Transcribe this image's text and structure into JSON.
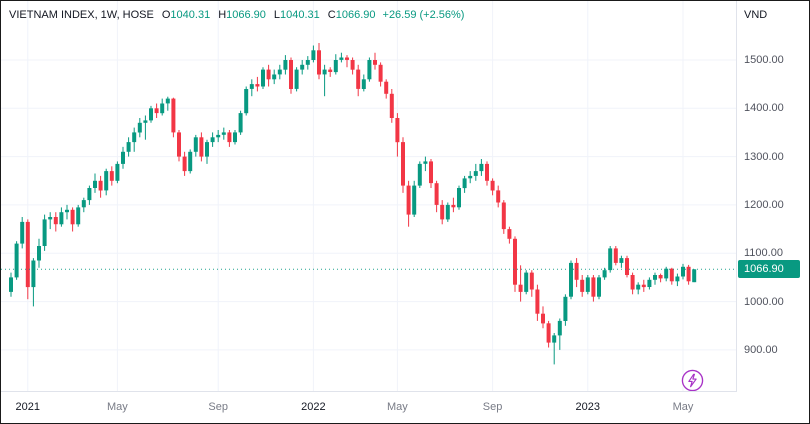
{
  "legend": {
    "title": "VIETNAM INDEX, 1W, HOSE",
    "items": [
      {
        "label": "O",
        "value": "1040.31"
      },
      {
        "label": "H",
        "value": "1066.90"
      },
      {
        "label": "L",
        "value": "1040.31"
      },
      {
        "label": "C",
        "value": "1066.90"
      }
    ],
    "change": "+26.59 (+2.56%)"
  },
  "axis": {
    "currency": "VND",
    "price_tag": "1066.90"
  },
  "colors": {
    "up": "#089981",
    "down": "#f23645",
    "grid": "#f0f3fa",
    "current_line": "#089981",
    "tag_bg": "#089981",
    "purple": "#a832c7"
  },
  "chart_data": {
    "type": "candlestick",
    "title": "VIETNAM INDEX, 1W, HOSE",
    "ylabel": "VND",
    "ylim": [
      815,
      1622
    ],
    "y_ticks": [
      900,
      1000,
      1100,
      1200,
      1300,
      1400,
      1500
    ],
    "current_price": 1066.9,
    "last_candle": {
      "o": 1040.31,
      "h": 1066.9,
      "l": 1040.31,
      "c": 1066.9,
      "change": 26.59,
      "change_pct": 2.56
    },
    "x_ticks": [
      {
        "label": "2021",
        "index": 3,
        "major": true
      },
      {
        "label": "May",
        "index": 19,
        "major": false
      },
      {
        "label": "Sep",
        "index": 37,
        "major": false
      },
      {
        "label": "2022",
        "index": 54,
        "major": true
      },
      {
        "label": "May",
        "index": 69,
        "major": false
      },
      {
        "label": "Sep",
        "index": 86,
        "major": false
      },
      {
        "label": "2023",
        "index": 103,
        "major": true
      },
      {
        "label": "May",
        "index": 120,
        "major": false
      }
    ],
    "candles": [
      [
        1020,
        1060,
        1010,
        1050
      ],
      [
        1050,
        1125,
        1045,
        1120
      ],
      [
        1120,
        1175,
        1110,
        1165
      ],
      [
        1165,
        1170,
        1005,
        1030
      ],
      [
        1030,
        1090,
        990,
        1085
      ],
      [
        1085,
        1130,
        1070,
        1115
      ],
      [
        1115,
        1180,
        1105,
        1170
      ],
      [
        1170,
        1185,
        1150,
        1175
      ],
      [
        1175,
        1185,
        1145,
        1160
      ],
      [
        1160,
        1195,
        1155,
        1185
      ],
      [
        1185,
        1200,
        1170,
        1190
      ],
      [
        1190,
        1195,
        1145,
        1160
      ],
      [
        1160,
        1200,
        1155,
        1195
      ],
      [
        1195,
        1215,
        1185,
        1210
      ],
      [
        1210,
        1240,
        1200,
        1235
      ],
      [
        1235,
        1265,
        1225,
        1250
      ],
      [
        1250,
        1260,
        1215,
        1230
      ],
      [
        1230,
        1275,
        1220,
        1270
      ],
      [
        1270,
        1280,
        1240,
        1250
      ],
      [
        1250,
        1290,
        1245,
        1285
      ],
      [
        1285,
        1320,
        1275,
        1310
      ],
      [
        1310,
        1340,
        1300,
        1330
      ],
      [
        1330,
        1360,
        1310,
        1350
      ],
      [
        1350,
        1380,
        1340,
        1370
      ],
      [
        1370,
        1385,
        1335,
        1375
      ],
      [
        1375,
        1405,
        1370,
        1400
      ],
      [
        1400,
        1410,
        1380,
        1390
      ],
      [
        1390,
        1420,
        1385,
        1410
      ],
      [
        1410,
        1424,
        1395,
        1420
      ],
      [
        1420,
        1422,
        1340,
        1350
      ],
      [
        1350,
        1355,
        1290,
        1300
      ],
      [
        1300,
        1310,
        1260,
        1270
      ],
      [
        1270,
        1315,
        1265,
        1310
      ],
      [
        1310,
        1345,
        1300,
        1340
      ],
      [
        1340,
        1350,
        1290,
        1300
      ],
      [
        1300,
        1335,
        1285,
        1330
      ],
      [
        1330,
        1350,
        1320,
        1340
      ],
      [
        1340,
        1355,
        1330,
        1345
      ],
      [
        1345,
        1360,
        1335,
        1350
      ],
      [
        1350,
        1355,
        1320,
        1330
      ],
      [
        1330,
        1355,
        1325,
        1350
      ],
      [
        1350,
        1395,
        1345,
        1390
      ],
      [
        1390,
        1445,
        1385,
        1440
      ],
      [
        1440,
        1460,
        1425,
        1450
      ],
      [
        1450,
        1465,
        1435,
        1445
      ],
      [
        1445,
        1485,
        1440,
        1480
      ],
      [
        1480,
        1490,
        1445,
        1460
      ],
      [
        1460,
        1480,
        1450,
        1470
      ],
      [
        1470,
        1490,
        1460,
        1480
      ],
      [
        1480,
        1510,
        1470,
        1500
      ],
      [
        1500,
        1505,
        1430,
        1440
      ],
      [
        1440,
        1485,
        1435,
        1480
      ],
      [
        1480,
        1500,
        1470,
        1490
      ],
      [
        1490,
        1508,
        1480,
        1500
      ],
      [
        1500,
        1530,
        1495,
        1520
      ],
      [
        1520,
        1535,
        1460,
        1470
      ],
      [
        1470,
        1490,
        1425,
        1480
      ],
      [
        1480,
        1485,
        1465,
        1475
      ],
      [
        1475,
        1512,
        1470,
        1500
      ],
      [
        1500,
        1515,
        1495,
        1505
      ],
      [
        1505,
        1510,
        1485,
        1500
      ],
      [
        1500,
        1505,
        1470,
        1480
      ],
      [
        1480,
        1490,
        1425,
        1440
      ],
      [
        1440,
        1470,
        1435,
        1460
      ],
      [
        1460,
        1505,
        1455,
        1500
      ],
      [
        1500,
        1515,
        1480,
        1490
      ],
      [
        1490,
        1495,
        1445,
        1455
      ],
      [
        1455,
        1460,
        1420,
        1430
      ],
      [
        1430,
        1440,
        1370,
        1380
      ],
      [
        1380,
        1390,
        1300,
        1330
      ],
      [
        1330,
        1340,
        1225,
        1240
      ],
      [
        1240,
        1250,
        1155,
        1180
      ],
      [
        1180,
        1250,
        1175,
        1240
      ],
      [
        1240,
        1290,
        1235,
        1285
      ],
      [
        1285,
        1300,
        1270,
        1290
      ],
      [
        1290,
        1295,
        1235,
        1245
      ],
      [
        1245,
        1250,
        1185,
        1200
      ],
      [
        1200,
        1210,
        1160,
        1170
      ],
      [
        1170,
        1205,
        1165,
        1200
      ],
      [
        1200,
        1215,
        1185,
        1195
      ],
      [
        1195,
        1240,
        1190,
        1235
      ],
      [
        1235,
        1260,
        1225,
        1255
      ],
      [
        1255,
        1270,
        1245,
        1260
      ],
      [
        1260,
        1285,
        1250,
        1270
      ],
      [
        1270,
        1295,
        1260,
        1285
      ],
      [
        1285,
        1290,
        1240,
        1250
      ],
      [
        1250,
        1255,
        1220,
        1230
      ],
      [
        1230,
        1240,
        1195,
        1205
      ],
      [
        1205,
        1210,
        1140,
        1150
      ],
      [
        1150,
        1155,
        1120,
        1130
      ],
      [
        1130,
        1135,
        1020,
        1035
      ],
      [
        1035,
        1075,
        1000,
        1020
      ],
      [
        1020,
        1065,
        1015,
        1060
      ],
      [
        1060,
        1065,
        1010,
        1025
      ],
      [
        1025,
        1035,
        960,
        975
      ],
      [
        975,
        990,
        945,
        955
      ],
      [
        955,
        960,
        905,
        915
      ],
      [
        915,
        935,
        870,
        930
      ],
      [
        930,
        965,
        900,
        960
      ],
      [
        960,
        1015,
        950,
        1010
      ],
      [
        1010,
        1085,
        1005,
        1080
      ],
      [
        1080,
        1090,
        1030,
        1045
      ],
      [
        1045,
        1055,
        1010,
        1020
      ],
      [
        1020,
        1055,
        1015,
        1050
      ],
      [
        1050,
        1055,
        1000,
        1010
      ],
      [
        1010,
        1055,
        1005,
        1050
      ],
      [
        1050,
        1070,
        1045,
        1065
      ],
      [
        1065,
        1115,
        1060,
        1110
      ],
      [
        1110,
        1115,
        1075,
        1080
      ],
      [
        1080,
        1095,
        1070,
        1090
      ],
      [
        1090,
        1095,
        1050,
        1055
      ],
      [
        1055,
        1060,
        1015,
        1025
      ],
      [
        1025,
        1040,
        1015,
        1035
      ],
      [
        1035,
        1045,
        1020,
        1030
      ],
      [
        1030,
        1050,
        1025,
        1045
      ],
      [
        1045,
        1060,
        1035,
        1055
      ],
      [
        1055,
        1058,
        1040,
        1048
      ],
      [
        1048,
        1072,
        1042,
        1068
      ],
      [
        1068,
        1070,
        1035,
        1042
      ],
      [
        1042,
        1058,
        1032,
        1052
      ],
      [
        1052,
        1078,
        1046,
        1072
      ],
      [
        1072,
        1076,
        1035,
        1042
      ],
      [
        1040.31,
        1066.9,
        1040.31,
        1066.9
      ]
    ]
  }
}
